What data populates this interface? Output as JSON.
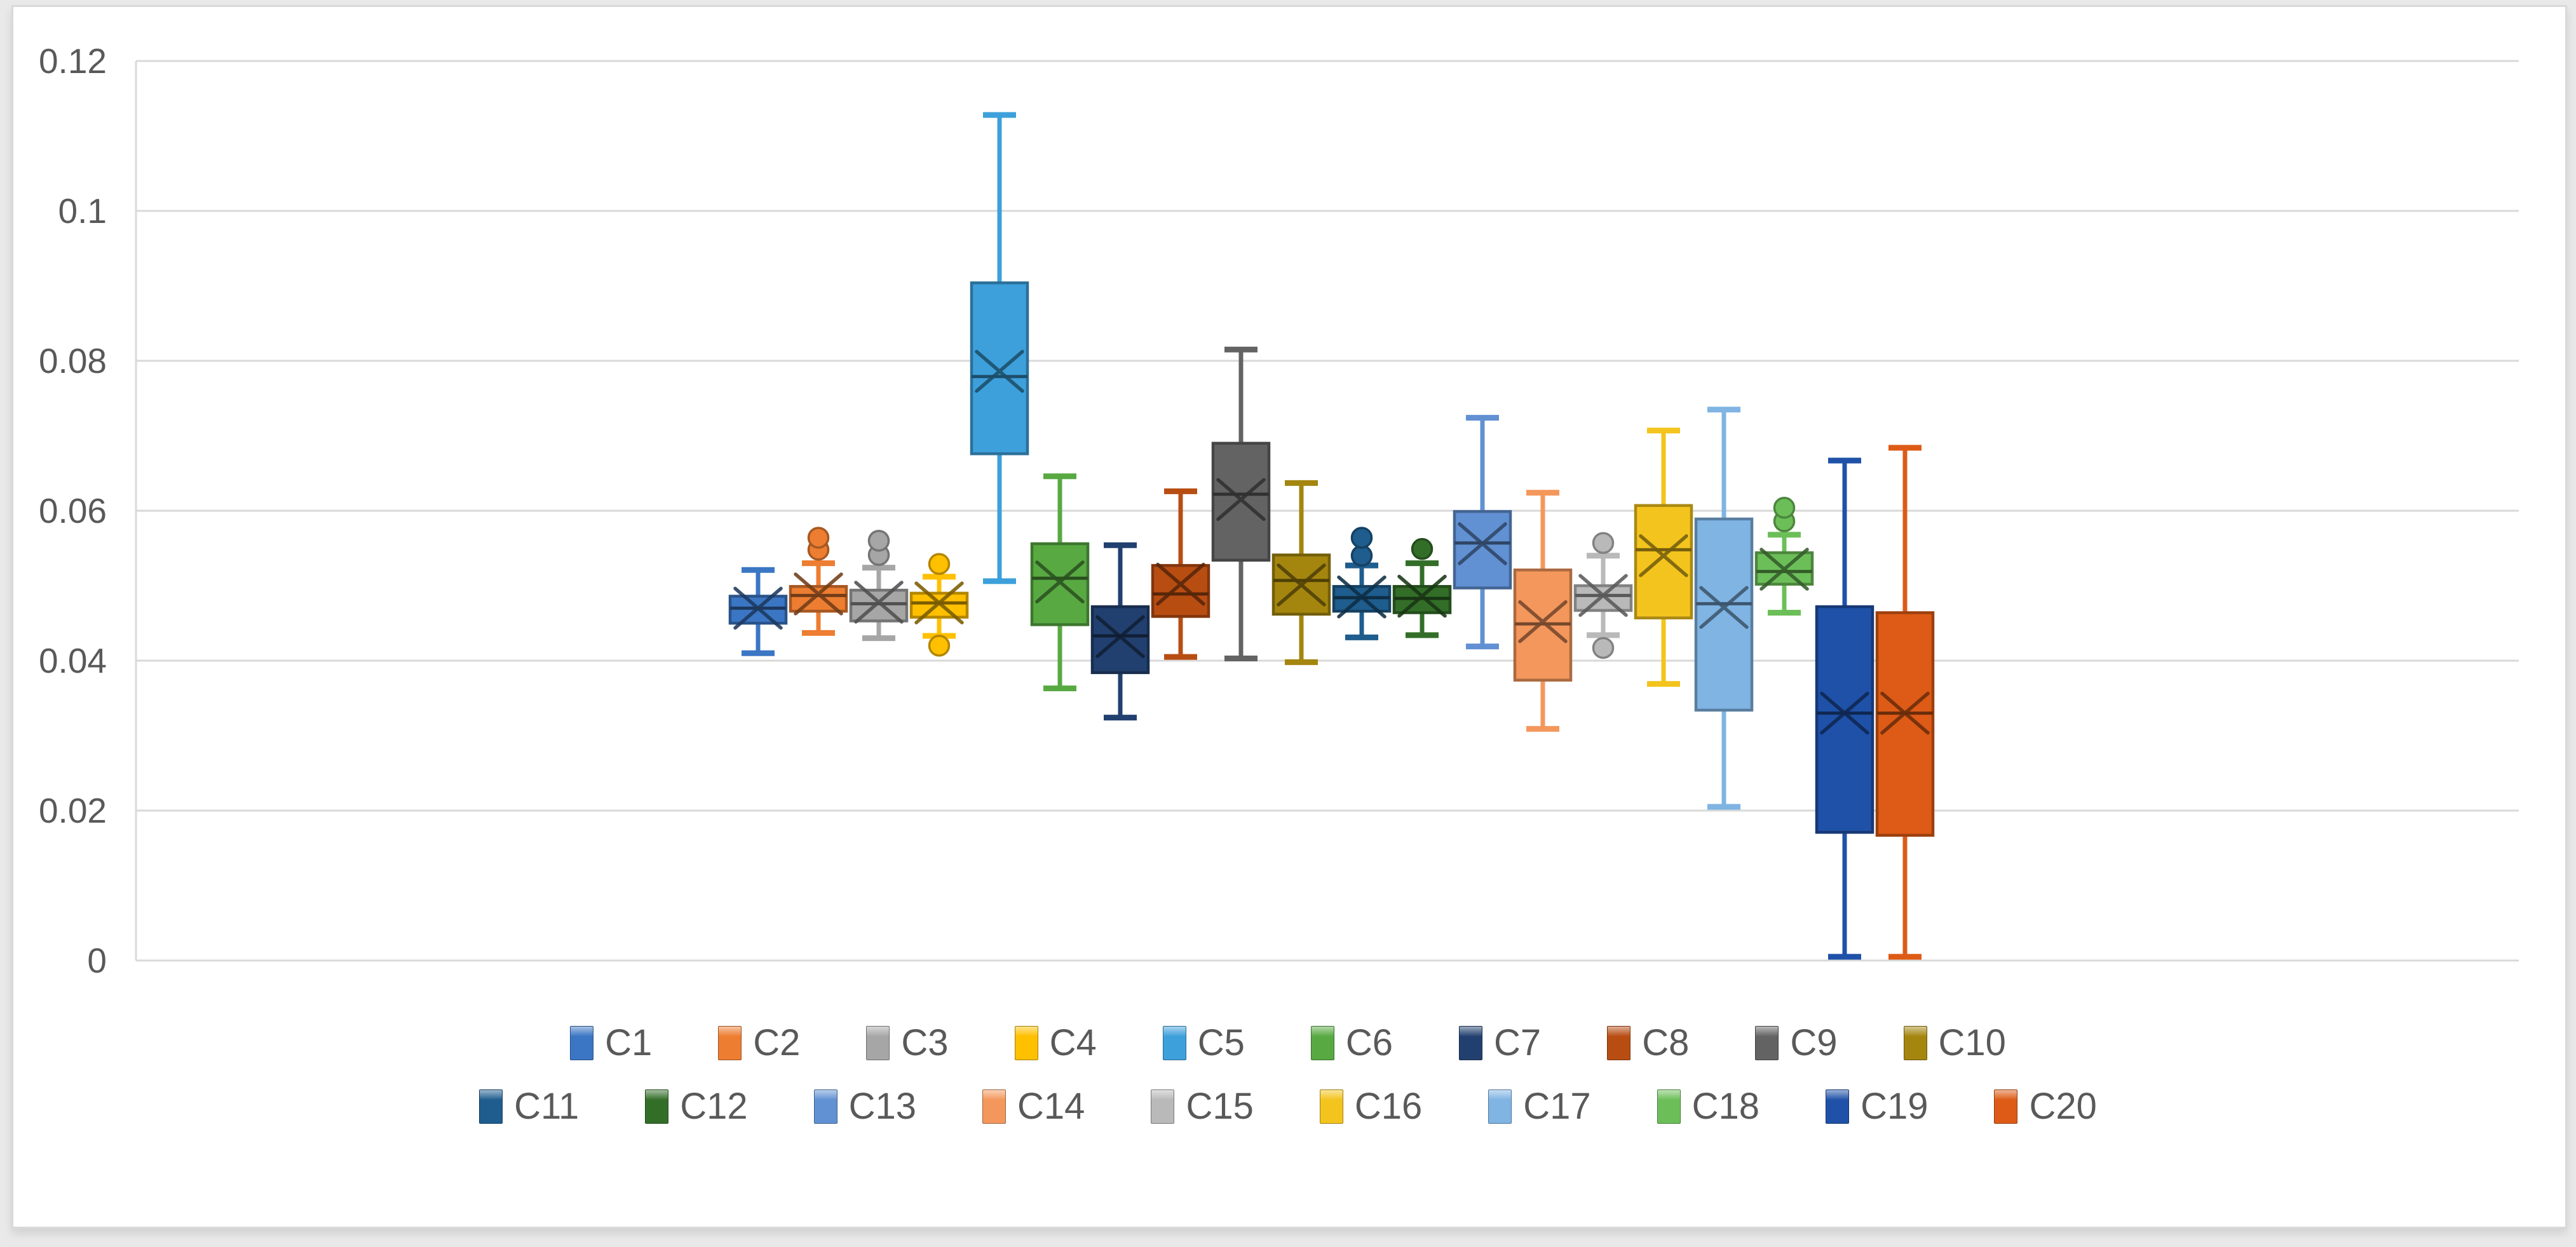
{
  "chart_data": {
    "type": "box",
    "title": "",
    "xlabel": "",
    "ylabel": "",
    "ylim": [
      0,
      0.12
    ],
    "grid": true,
    "legend_position": "bottom",
    "legend_rows": [
      10,
      10
    ],
    "y_ticks": [
      {
        "label": "0.12",
        "value": 0.12
      },
      {
        "label": "0.1",
        "value": 0.1
      },
      {
        "label": "0.08",
        "value": 0.08
      },
      {
        "label": "0.06",
        "value": 0.06
      },
      {
        "label": "0.04",
        "value": 0.04
      },
      {
        "label": "0.02",
        "value": 0.02
      },
      {
        "label": "0",
        "value": 0.0
      }
    ],
    "series": [
      {
        "name": "C1",
        "color": "#3B76C4",
        "whisker_low": 0.041,
        "q1": 0.045,
        "median": 0.047,
        "q3": 0.0486,
        "whisker_high": 0.0521,
        "mean": 0.047,
        "outliers_high": [],
        "outliers_low": []
      },
      {
        "name": "C2",
        "color": "#ED7D31",
        "whisker_low": 0.0437,
        "q1": 0.0466,
        "median": 0.0487,
        "q3": 0.0499,
        "whisker_high": 0.053,
        "mean": 0.0489,
        "outliers_high": [
          0.0548,
          0.0564
        ],
        "outliers_low": []
      },
      {
        "name": "C3",
        "color": "#A6A6A6",
        "whisker_low": 0.043,
        "q1": 0.0453,
        "median": 0.0476,
        "q3": 0.0494,
        "whisker_high": 0.0524,
        "mean": 0.0478,
        "outliers_high": [
          0.0541,
          0.056
        ],
        "outliers_low": []
      },
      {
        "name": "C4",
        "color": "#FFC000",
        "whisker_low": 0.0433,
        "q1": 0.0458,
        "median": 0.0477,
        "q3": 0.049,
        "whisker_high": 0.0512,
        "mean": 0.0477,
        "outliers_high": [
          0.0529
        ],
        "outliers_low": [
          0.042
        ]
      },
      {
        "name": "C5",
        "color": "#3DA0DB",
        "whisker_low": 0.0506,
        "q1": 0.0676,
        "median": 0.0779,
        "q3": 0.0904,
        "whisker_high": 0.1128,
        "mean": 0.0786,
        "outliers_high": [],
        "outliers_low": []
      },
      {
        "name": "C6",
        "color": "#58A942",
        "whisker_low": 0.0363,
        "q1": 0.0448,
        "median": 0.051,
        "q3": 0.0556,
        "whisker_high": 0.0646,
        "mean": 0.0505,
        "outliers_high": [],
        "outliers_low": []
      },
      {
        "name": "C7",
        "color": "#22406F",
        "whisker_low": 0.0324,
        "q1": 0.0384,
        "median": 0.0433,
        "q3": 0.0472,
        "whisker_high": 0.0554,
        "mean": 0.0432,
        "outliers_high": [],
        "outliers_low": []
      },
      {
        "name": "C8",
        "color": "#B84D12",
        "whisker_low": 0.0405,
        "q1": 0.0459,
        "median": 0.0489,
        "q3": 0.0527,
        "whisker_high": 0.0626,
        "mean": 0.0502,
        "outliers_high": [],
        "outliers_low": []
      },
      {
        "name": "C9",
        "color": "#636363",
        "whisker_low": 0.0403,
        "q1": 0.0534,
        "median": 0.0622,
        "q3": 0.069,
        "whisker_high": 0.0815,
        "mean": 0.0615,
        "outliers_high": [],
        "outliers_low": []
      },
      {
        "name": "C10",
        "color": "#A4860F",
        "whisker_low": 0.0398,
        "q1": 0.0462,
        "median": 0.0507,
        "q3": 0.0541,
        "whisker_high": 0.0637,
        "mean": 0.0501,
        "outliers_high": [],
        "outliers_low": []
      },
      {
        "name": "C11",
        "color": "#1E5D8D",
        "whisker_low": 0.0431,
        "q1": 0.0466,
        "median": 0.0484,
        "q3": 0.0499,
        "whisker_high": 0.0527,
        "mean": 0.0485,
        "outliers_high": [
          0.054,
          0.0564
        ],
        "outliers_low": []
      },
      {
        "name": "C12",
        "color": "#336E28",
        "whisker_low": 0.0434,
        "q1": 0.0464,
        "median": 0.0483,
        "q3": 0.0499,
        "whisker_high": 0.053,
        "mean": 0.0486,
        "outliers_high": [
          0.0549
        ],
        "outliers_low": []
      },
      {
        "name": "C13",
        "color": "#6190D3",
        "whisker_low": 0.0419,
        "q1": 0.0497,
        "median": 0.0557,
        "q3": 0.0599,
        "whisker_high": 0.0724,
        "mean": 0.0556,
        "outliers_high": [],
        "outliers_low": []
      },
      {
        "name": "C14",
        "color": "#F4975C",
        "whisker_low": 0.0309,
        "q1": 0.0374,
        "median": 0.0449,
        "q3": 0.0521,
        "whisker_high": 0.0624,
        "mean": 0.0452,
        "outliers_high": [],
        "outliers_low": []
      },
      {
        "name": "C15",
        "color": "#B9B9B9",
        "whisker_low": 0.0434,
        "q1": 0.0467,
        "median": 0.0487,
        "q3": 0.05,
        "whisker_high": 0.054,
        "mean": 0.0487,
        "outliers_high": [
          0.0557
        ],
        "outliers_low": [
          0.0417
        ]
      },
      {
        "name": "C16",
        "color": "#F3C41D",
        "whisker_low": 0.0369,
        "q1": 0.0457,
        "median": 0.0548,
        "q3": 0.0607,
        "whisker_high": 0.0707,
        "mean": 0.054,
        "outliers_high": [],
        "outliers_low": []
      },
      {
        "name": "C17",
        "color": "#7FB4E3",
        "whisker_low": 0.0205,
        "q1": 0.0334,
        "median": 0.0476,
        "q3": 0.0589,
        "whisker_high": 0.0735,
        "mean": 0.0471,
        "outliers_high": [],
        "outliers_low": []
      },
      {
        "name": "C18",
        "color": "#6CBF58",
        "whisker_low": 0.0464,
        "q1": 0.0502,
        "median": 0.0519,
        "q3": 0.0544,
        "whisker_high": 0.0568,
        "mean": 0.0522,
        "outliers_high": [
          0.0586,
          0.0604
        ],
        "outliers_low": []
      },
      {
        "name": "C19",
        "color": "#1F51A8",
        "whisker_low": 0.0005,
        "q1": 0.0171,
        "median": 0.033,
        "q3": 0.0472,
        "whisker_high": 0.0667,
        "mean": 0.033,
        "outliers_high": [],
        "outliers_low": []
      },
      {
        "name": "C20",
        "color": "#DD5B16",
        "whisker_low": 0.0005,
        "q1": 0.0167,
        "median": 0.033,
        "q3": 0.0464,
        "whisker_high": 0.0684,
        "mean": 0.033,
        "outliers_high": [],
        "outliers_low": []
      }
    ]
  },
  "styles": {
    "gridline_color": "#D9D9D9",
    "axis_line_color": "#D9D9D9",
    "axis_text_color": "#595959",
    "chart_border_color": "#D9D9D9",
    "chart_background": "#FFFFFF",
    "page_background": "#E9E9E9"
  }
}
